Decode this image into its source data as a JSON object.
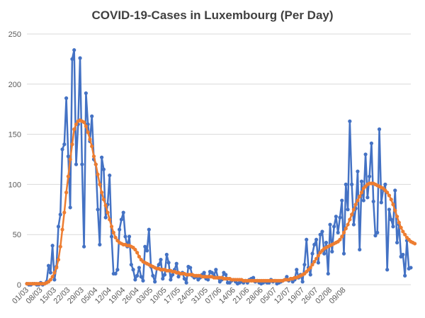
{
  "chart_data": {
    "type": "line",
    "title": "COVID-19-Cases in Luxembourg (Per Day)",
    "xlabel": "",
    "ylabel": "",
    "ylim": [
      0,
      250
    ],
    "yticks": [
      "0",
      "50",
      "100",
      "150",
      "200",
      "250"
    ],
    "grid": true,
    "legend": "none",
    "x_tick_labels": [
      "01/03",
      "08/03",
      "15/03",
      "22/03",
      "29/03",
      "05/04",
      "12/04",
      "19/04",
      "26/04",
      "03/05",
      "10/05",
      "17/05",
      "24/05",
      "31/05",
      "07/06",
      "14/06",
      "21/06",
      "28/06",
      "05/07",
      "12/07",
      "19/07",
      "26/07",
      "02/08",
      "09/08"
    ],
    "x_start": "01/03",
    "series": [
      {
        "color": "#4472c4",
        "values": [
          1,
          0,
          0,
          1,
          1,
          0,
          0,
          2,
          0,
          1,
          3,
          19,
          12,
          39,
          5,
          18,
          58,
          70,
          135,
          140,
          186,
          128,
          77,
          225,
          234,
          120,
          160,
          226,
          120,
          38,
          191,
          160,
          143,
          168,
          125,
          120,
          75,
          40,
          127,
          115,
          67,
          80,
          109,
          48,
          11,
          11,
          15,
          55,
          65,
          72,
          48,
          38,
          48,
          20,
          15,
          5,
          9,
          17,
          8,
          4,
          38,
          34,
          55,
          18,
          9,
          3,
          16,
          20,
          25,
          6,
          10,
          30,
          22,
          5,
          10,
          15,
          21,
          8,
          11,
          12,
          6,
          2,
          18,
          17,
          9,
          7,
          8,
          5,
          7,
          10,
          12,
          6,
          5,
          13,
          12,
          9,
          15,
          7,
          3,
          5,
          12,
          10,
          2,
          2,
          4,
          5,
          3,
          1,
          2,
          3,
          2,
          4,
          2,
          5,
          6,
          7,
          3,
          4,
          2,
          1,
          2,
          3,
          2,
          2,
          5,
          3,
          4,
          1,
          2,
          3,
          4,
          5,
          8,
          4,
          6,
          3,
          5,
          15,
          7,
          10,
          3,
          20,
          45,
          17,
          10,
          31,
          40,
          45,
          22,
          50,
          53,
          31,
          42,
          11,
          60,
          33,
          58,
          68,
          52,
          67,
          84,
          31,
          100,
          75,
          163,
          100,
          60,
          76,
          113,
          35,
          103,
          84,
          130,
          87,
          108,
          141,
          83,
          49,
          52,
          155,
          82,
          95,
          100,
          15,
          75,
          65,
          58,
          94,
          42,
          60,
          28,
          30,
          9,
          44,
          16,
          17
        ]
      },
      {
        "color": "#ed7d31",
        "values": [
          1,
          1,
          1,
          1,
          1,
          1,
          1,
          1,
          1,
          1,
          2,
          3,
          5,
          8,
          12,
          17,
          25,
          38,
          55,
          72,
          92,
          108,
          125,
          140,
          155,
          160,
          163,
          164,
          163,
          162,
          158,
          152,
          145,
          138,
          128,
          120,
          110,
          100,
          92,
          85,
          79,
          72,
          65,
          58,
          52,
          47,
          44,
          42,
          41,
          40,
          40,
          39,
          39,
          38,
          37,
          35,
          32,
          28,
          25,
          23,
          22,
          21,
          20,
          19,
          18,
          17,
          16,
          16,
          15,
          15,
          15,
          14,
          14,
          14,
          13,
          13,
          12,
          12,
          11,
          11,
          11,
          10,
          10,
          10,
          10,
          9,
          9,
          9,
          9,
          8,
          8,
          8,
          8,
          8,
          8,
          7,
          7,
          7,
          7,
          7,
          6,
          6,
          6,
          6,
          5,
          5,
          5,
          5,
          5,
          5,
          4,
          4,
          4,
          4,
          4,
          4,
          4,
          4,
          4,
          4,
          4,
          4,
          4,
          4,
          4,
          4,
          4,
          4,
          4,
          4,
          4,
          5,
          5,
          5,
          6,
          6,
          7,
          7,
          8,
          9,
          10,
          11,
          13,
          15,
          17,
          20,
          23,
          26,
          29,
          32,
          34,
          36,
          37,
          38,
          39,
          40,
          41,
          42,
          43,
          45,
          48,
          52,
          56,
          60,
          65,
          70,
          75,
          80,
          84,
          88,
          92,
          96,
          98,
          100,
          101,
          101,
          101,
          100,
          99,
          98,
          97,
          96,
          94,
          92,
          89,
          85,
          80,
          74,
          68,
          62,
          57,
          53,
          50,
          47,
          45,
          43,
          42,
          41
        ]
      }
    ]
  }
}
